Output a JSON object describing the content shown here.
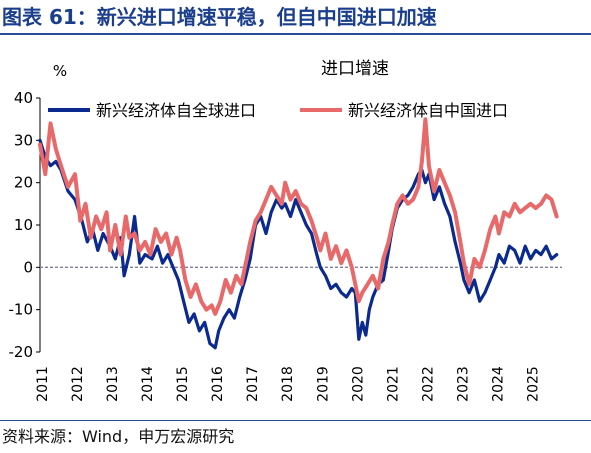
{
  "figure": {
    "title": "图表 61：新兴进口增速平稳，但自中国进口加速",
    "source": "资料来源：Wind，申万宏源研究"
  },
  "colors": {
    "title_text": "#1a3e8c",
    "rule": "#2b4a9a",
    "zero_line": "#7f7f9f"
  },
  "chart_data": {
    "type": "line",
    "title": "进口增速",
    "ylabel": "%",
    "xlabel": "",
    "ylim": [
      -20,
      40
    ],
    "yticks": [
      -20,
      -10,
      0,
      10,
      20,
      30,
      40
    ],
    "xlim": [
      2011.0,
      2025.9
    ],
    "x_tick_labels": [
      "2011",
      "2012",
      "2013",
      "2014",
      "2015",
      "2016",
      "2017",
      "2018",
      "2019",
      "2020",
      "2021",
      "2022",
      "2023",
      "2024",
      "2025"
    ],
    "legend_position": "top",
    "grid": false,
    "series": [
      {
        "name": "新兴经济体自全球进口",
        "color": "#0a2a8f",
        "points": [
          [
            2011.0,
            30
          ],
          [
            2011.15,
            26
          ],
          [
            2011.3,
            24
          ],
          [
            2011.45,
            25
          ],
          [
            2011.6,
            23
          ],
          [
            2011.8,
            18
          ],
          [
            2012.0,
            16
          ],
          [
            2012.2,
            11
          ],
          [
            2012.35,
            6
          ],
          [
            2012.5,
            9
          ],
          [
            2012.65,
            4
          ],
          [
            2012.8,
            8
          ],
          [
            2013.0,
            5
          ],
          [
            2013.15,
            2
          ],
          [
            2013.3,
            7
          ],
          [
            2013.4,
            -2
          ],
          [
            2013.55,
            3
          ],
          [
            2013.7,
            12
          ],
          [
            2013.85,
            1
          ],
          [
            2014.0,
            3
          ],
          [
            2014.2,
            2
          ],
          [
            2014.35,
            5
          ],
          [
            2014.5,
            1
          ],
          [
            2014.65,
            3
          ],
          [
            2014.8,
            0
          ],
          [
            2014.95,
            -3
          ],
          [
            2015.1,
            -8
          ],
          [
            2015.25,
            -13
          ],
          [
            2015.4,
            -11
          ],
          [
            2015.55,
            -15
          ],
          [
            2015.7,
            -13
          ],
          [
            2015.85,
            -18
          ],
          [
            2016.0,
            -19
          ],
          [
            2016.1,
            -15
          ],
          [
            2016.25,
            -12
          ],
          [
            2016.4,
            -10
          ],
          [
            2016.55,
            -12
          ],
          [
            2016.7,
            -7
          ],
          [
            2016.85,
            -3
          ],
          [
            2017.0,
            2
          ],
          [
            2017.15,
            10
          ],
          [
            2017.3,
            12
          ],
          [
            2017.45,
            8
          ],
          [
            2017.6,
            13
          ],
          [
            2017.75,
            16
          ],
          [
            2017.9,
            14
          ],
          [
            2018.0,
            15
          ],
          [
            2018.15,
            12
          ],
          [
            2018.3,
            16
          ],
          [
            2018.45,
            13
          ],
          [
            2018.6,
            10
          ],
          [
            2018.75,
            8
          ],
          [
            2018.9,
            3
          ],
          [
            2019.0,
            0
          ],
          [
            2019.15,
            -2
          ],
          [
            2019.3,
            -5
          ],
          [
            2019.45,
            -4
          ],
          [
            2019.6,
            -6
          ],
          [
            2019.75,
            -7
          ],
          [
            2019.9,
            -5
          ],
          [
            2020.0,
            -6
          ],
          [
            2020.1,
            -17
          ],
          [
            2020.2,
            -13
          ],
          [
            2020.3,
            -16
          ],
          [
            2020.4,
            -10
          ],
          [
            2020.5,
            -7
          ],
          [
            2020.65,
            -4
          ],
          [
            2020.8,
            -3
          ],
          [
            2020.95,
            4
          ],
          [
            2021.05,
            9
          ],
          [
            2021.2,
            14
          ],
          [
            2021.35,
            16
          ],
          [
            2021.5,
            17
          ],
          [
            2021.65,
            19
          ],
          [
            2021.8,
            22
          ],
          [
            2021.9,
            23
          ],
          [
            2022.0,
            20
          ],
          [
            2022.1,
            22
          ],
          [
            2022.25,
            16
          ],
          [
            2022.4,
            19
          ],
          [
            2022.55,
            15
          ],
          [
            2022.7,
            12
          ],
          [
            2022.85,
            6
          ],
          [
            2023.0,
            1
          ],
          [
            2023.1,
            -3
          ],
          [
            2023.25,
            -6
          ],
          [
            2023.4,
            -3
          ],
          [
            2023.55,
            -8
          ],
          [
            2023.7,
            -6
          ],
          [
            2023.85,
            -3
          ],
          [
            2024.0,
            0
          ],
          [
            2024.1,
            3
          ],
          [
            2024.25,
            1
          ],
          [
            2024.4,
            5
          ],
          [
            2024.55,
            4
          ],
          [
            2024.7,
            1
          ],
          [
            2024.85,
            5
          ],
          [
            2025.0,
            2
          ],
          [
            2025.15,
            4
          ],
          [
            2025.3,
            3
          ],
          [
            2025.45,
            5
          ],
          [
            2025.6,
            2
          ],
          [
            2025.75,
            3
          ]
        ]
      },
      {
        "name": "新兴经济体自中国进口",
        "color": "#e8696a",
        "points": [
          [
            2011.0,
            29
          ],
          [
            2011.15,
            22
          ],
          [
            2011.3,
            34
          ],
          [
            2011.45,
            28
          ],
          [
            2011.6,
            24
          ],
          [
            2011.8,
            19
          ],
          [
            2012.0,
            22
          ],
          [
            2012.15,
            11
          ],
          [
            2012.3,
            15
          ],
          [
            2012.45,
            7
          ],
          [
            2012.6,
            12
          ],
          [
            2012.75,
            9
          ],
          [
            2012.9,
            13
          ],
          [
            2013.0,
            4
          ],
          [
            2013.15,
            10
          ],
          [
            2013.3,
            3
          ],
          [
            2013.45,
            12
          ],
          [
            2013.55,
            7
          ],
          [
            2013.7,
            8
          ],
          [
            2013.85,
            4
          ],
          [
            2014.0,
            6
          ],
          [
            2014.15,
            3
          ],
          [
            2014.3,
            9
          ],
          [
            2014.45,
            6
          ],
          [
            2014.6,
            8
          ],
          [
            2014.75,
            3
          ],
          [
            2014.9,
            7
          ],
          [
            2015.0,
            4
          ],
          [
            2015.15,
            -3
          ],
          [
            2015.3,
            -7
          ],
          [
            2015.45,
            -4
          ],
          [
            2015.6,
            -8
          ],
          [
            2015.75,
            -10
          ],
          [
            2015.9,
            -9
          ],
          [
            2016.0,
            -11
          ],
          [
            2016.15,
            -8
          ],
          [
            2016.3,
            -3
          ],
          [
            2016.45,
            -6
          ],
          [
            2016.6,
            -2
          ],
          [
            2016.75,
            -4
          ],
          [
            2016.9,
            2
          ],
          [
            2017.0,
            6
          ],
          [
            2017.15,
            11
          ],
          [
            2017.3,
            13
          ],
          [
            2017.45,
            16
          ],
          [
            2017.6,
            19
          ],
          [
            2017.75,
            17
          ],
          [
            2017.9,
            15
          ],
          [
            2018.0,
            20
          ],
          [
            2018.15,
            16
          ],
          [
            2018.3,
            18
          ],
          [
            2018.45,
            15
          ],
          [
            2018.6,
            14
          ],
          [
            2018.75,
            11
          ],
          [
            2018.9,
            7
          ],
          [
            2019.0,
            4
          ],
          [
            2019.15,
            8
          ],
          [
            2019.3,
            2
          ],
          [
            2019.45,
            5
          ],
          [
            2019.6,
            1
          ],
          [
            2019.75,
            4
          ],
          [
            2019.9,
            0
          ],
          [
            2020.0,
            -4
          ],
          [
            2020.1,
            -8
          ],
          [
            2020.2,
            -6
          ],
          [
            2020.35,
            -4
          ],
          [
            2020.5,
            -2
          ],
          [
            2020.65,
            -5
          ],
          [
            2020.8,
            2
          ],
          [
            2020.95,
            6
          ],
          [
            2021.05,
            10
          ],
          [
            2021.2,
            15
          ],
          [
            2021.35,
            17
          ],
          [
            2021.5,
            15
          ],
          [
            2021.65,
            16
          ],
          [
            2021.8,
            19
          ],
          [
            2021.9,
            25
          ],
          [
            2022.0,
            35
          ],
          [
            2022.1,
            24
          ],
          [
            2022.25,
            18
          ],
          [
            2022.4,
            23
          ],
          [
            2022.55,
            20
          ],
          [
            2022.7,
            17
          ],
          [
            2022.85,
            13
          ],
          [
            2023.0,
            6
          ],
          [
            2023.1,
            1
          ],
          [
            2023.25,
            -4
          ],
          [
            2023.4,
            2
          ],
          [
            2023.55,
            0
          ],
          [
            2023.7,
            4
          ],
          [
            2023.85,
            9
          ],
          [
            2024.0,
            12
          ],
          [
            2024.1,
            8
          ],
          [
            2024.25,
            13
          ],
          [
            2024.4,
            12
          ],
          [
            2024.55,
            15
          ],
          [
            2024.7,
            13
          ],
          [
            2024.85,
            14
          ],
          [
            2025.0,
            15
          ],
          [
            2025.15,
            14
          ],
          [
            2025.3,
            15
          ],
          [
            2025.45,
            17
          ],
          [
            2025.6,
            16
          ],
          [
            2025.75,
            12
          ]
        ]
      }
    ]
  }
}
